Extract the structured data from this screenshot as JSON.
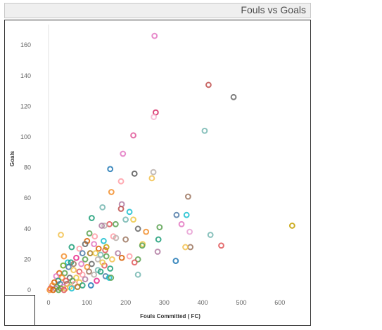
{
  "title": "Fouls vs Goals",
  "chart_data": {
    "type": "scatter",
    "title": "Fouls vs Goals",
    "xlabel": "Fouls Committed ( FC)",
    "ylabel": "Goals",
    "xlim": [
      0,
      630
    ],
    "ylim": [
      0,
      170
    ],
    "xticks": [
      "0",
      "100",
      "200",
      "300",
      "400",
      "500",
      "600"
    ],
    "yticks": [
      "0",
      "20",
      "40",
      "60",
      "80",
      "100",
      "120",
      "140",
      "160"
    ],
    "grid": false,
    "legend": "none",
    "marker": "hollow-circle",
    "colors": [
      "#4e79a7",
      "#f28e2b",
      "#e15759",
      "#76b7b2",
      "#59a14f",
      "#edc948",
      "#b07aa1",
      "#ff9da7",
      "#9c755f",
      "#bab0ac",
      "#1b9e77",
      "#d95f02",
      "#e7298a",
      "#66a61e",
      "#a6761d",
      "#666666",
      "#17becf"
    ],
    "points": [
      {
        "x": 275,
        "y": 166,
        "color": "#e377c2"
      },
      {
        "x": 415,
        "y": 134,
        "color": "#c0504d"
      },
      {
        "x": 480,
        "y": 126,
        "color": "#666666"
      },
      {
        "x": 278,
        "y": 116,
        "color": "#d62763"
      },
      {
        "x": 273,
        "y": 113,
        "color": "#f7b6d2"
      },
      {
        "x": 405,
        "y": 104,
        "color": "#76b7b2"
      },
      {
        "x": 220,
        "y": 101,
        "color": "#e15799"
      },
      {
        "x": 193,
        "y": 89,
        "color": "#e377c2"
      },
      {
        "x": 160,
        "y": 79,
        "color": "#1f77b4"
      },
      {
        "x": 223,
        "y": 76,
        "color": "#555555"
      },
      {
        "x": 272,
        "y": 77,
        "color": "#bab0ac"
      },
      {
        "x": 268,
        "y": 73,
        "color": "#f2c14e"
      },
      {
        "x": 188,
        "y": 71,
        "color": "#ff9da7"
      },
      {
        "x": 163,
        "y": 64,
        "color": "#f28e2b"
      },
      {
        "x": 362,
        "y": 61,
        "color": "#9c755f"
      },
      {
        "x": 190,
        "y": 56,
        "color": "#b07aa1"
      },
      {
        "x": 188,
        "y": 53,
        "color": "#c0504d"
      },
      {
        "x": 140,
        "y": 54,
        "color": "#76b7b2"
      },
      {
        "x": 210,
        "y": 51,
        "color": "#17becf"
      },
      {
        "x": 332,
        "y": 49,
        "color": "#4e79a7"
      },
      {
        "x": 358,
        "y": 49,
        "color": "#17becf"
      },
      {
        "x": 112,
        "y": 47,
        "color": "#1b9e77"
      },
      {
        "x": 220,
        "y": 46,
        "color": "#edc948"
      },
      {
        "x": 200,
        "y": 46,
        "color": "#76b7b2"
      },
      {
        "x": 158,
        "y": 43,
        "color": "#e15759"
      },
      {
        "x": 174,
        "y": 43,
        "color": "#59a14f"
      },
      {
        "x": 288,
        "y": 41,
        "color": "#59a14f"
      },
      {
        "x": 345,
        "y": 43,
        "color": "#e377c2"
      },
      {
        "x": 145,
        "y": 42,
        "color": "#bab0ac"
      },
      {
        "x": 138,
        "y": 42,
        "color": "#b07aa1"
      },
      {
        "x": 232,
        "y": 40,
        "color": "#666666"
      },
      {
        "x": 253,
        "y": 38,
        "color": "#f28e2b"
      },
      {
        "x": 366,
        "y": 38,
        "color": "#e7a0d4"
      },
      {
        "x": 632,
        "y": 42,
        "color": "#c4a000"
      },
      {
        "x": 420,
        "y": 36,
        "color": "#76b7b2"
      },
      {
        "x": 32,
        "y": 36,
        "color": "#f2c14e"
      },
      {
        "x": 106,
        "y": 37,
        "color": "#59a14f"
      },
      {
        "x": 168,
        "y": 35,
        "color": "#ff9da7"
      },
      {
        "x": 175,
        "y": 34,
        "color": "#bab0ac"
      },
      {
        "x": 285,
        "y": 33,
        "color": "#1b9e77"
      },
      {
        "x": 143,
        "y": 32,
        "color": "#17becf"
      },
      {
        "x": 100,
        "y": 32,
        "color": "#d95f02"
      },
      {
        "x": 95,
        "y": 30,
        "color": "#666666"
      },
      {
        "x": 118,
        "y": 30,
        "color": "#e377c2"
      },
      {
        "x": 200,
        "y": 33,
        "color": "#9c755f"
      },
      {
        "x": 244,
        "y": 30,
        "color": "#edc948"
      },
      {
        "x": 448,
        "y": 29,
        "color": "#e15759"
      },
      {
        "x": 368,
        "y": 28,
        "color": "#9c755f"
      },
      {
        "x": 355,
        "y": 28,
        "color": "#f2c14e"
      },
      {
        "x": 243,
        "y": 29,
        "color": "#59a14f"
      },
      {
        "x": 60,
        "y": 28,
        "color": "#1b9e77"
      },
      {
        "x": 80,
        "y": 27,
        "color": "#ff9da7"
      },
      {
        "x": 130,
        "y": 27,
        "color": "#d95f02"
      },
      {
        "x": 147,
        "y": 26,
        "color": "#e15759"
      },
      {
        "x": 283,
        "y": 25,
        "color": "#b07aa1"
      },
      {
        "x": 88,
        "y": 24,
        "color": "#4e79a7"
      },
      {
        "x": 108,
        "y": 24,
        "color": "#a6761d"
      },
      {
        "x": 122,
        "y": 24,
        "color": "#edc948"
      },
      {
        "x": 135,
        "y": 23,
        "color": "#76b7b2"
      },
      {
        "x": 150,
        "y": 22,
        "color": "#59a14f"
      },
      {
        "x": 210,
        "y": 22,
        "color": "#ff9da7"
      },
      {
        "x": 40,
        "y": 22,
        "color": "#f28e2b"
      },
      {
        "x": 72,
        "y": 21,
        "color": "#e7298a"
      },
      {
        "x": 95,
        "y": 20,
        "color": "#59a14f"
      },
      {
        "x": 128,
        "y": 20,
        "color": "#bab0ac"
      },
      {
        "x": 165,
        "y": 20,
        "color": "#f2c14e"
      },
      {
        "x": 190,
        "y": 21,
        "color": "#d95f02"
      },
      {
        "x": 232,
        "y": 20,
        "color": "#59a14f"
      },
      {
        "x": 330,
        "y": 19,
        "color": "#1f77b4"
      },
      {
        "x": 223,
        "y": 18,
        "color": "#e15759"
      },
      {
        "x": 50,
        "y": 18,
        "color": "#17becf"
      },
      {
        "x": 58,
        "y": 18,
        "color": "#1b9e77"
      },
      {
        "x": 65,
        "y": 17,
        "color": "#9c755f"
      },
      {
        "x": 85,
        "y": 17,
        "color": "#e377c2"
      },
      {
        "x": 112,
        "y": 17,
        "color": "#666666"
      },
      {
        "x": 145,
        "y": 16,
        "color": "#e15759"
      },
      {
        "x": 38,
        "y": 16,
        "color": "#66a61e"
      },
      {
        "x": 52,
        "y": 15,
        "color": "#4e79a7"
      },
      {
        "x": 100,
        "y": 15,
        "color": "#f28e2b"
      },
      {
        "x": 160,
        "y": 14,
        "color": "#1b9e77"
      },
      {
        "x": 128,
        "y": 13,
        "color": "#76b7b2"
      },
      {
        "x": 65,
        "y": 13,
        "color": "#f2c14e"
      },
      {
        "x": 80,
        "y": 12,
        "color": "#e15759"
      },
      {
        "x": 105,
        "y": 12,
        "color": "#9c755f"
      },
      {
        "x": 135,
        "y": 12,
        "color": "#1b9e77"
      },
      {
        "x": 28,
        "y": 11,
        "color": "#d95f02"
      },
      {
        "x": 42,
        "y": 11,
        "color": "#59a14f"
      },
      {
        "x": 88,
        "y": 10,
        "color": "#ff9da7"
      },
      {
        "x": 118,
        "y": 10,
        "color": "#bab0ac"
      },
      {
        "x": 148,
        "y": 9,
        "color": "#4e79a7"
      },
      {
        "x": 157,
        "y": 8,
        "color": "#17becf"
      },
      {
        "x": 162,
        "y": 8,
        "color": "#59a14f"
      },
      {
        "x": 232,
        "y": 10,
        "color": "#76b7b2"
      },
      {
        "x": 20,
        "y": 9,
        "color": "#e377c2"
      },
      {
        "x": 35,
        "y": 8,
        "color": "#f28e2b"
      },
      {
        "x": 55,
        "y": 8,
        "color": "#666666"
      },
      {
        "x": 72,
        "y": 8,
        "color": "#edc948"
      },
      {
        "x": 95,
        "y": 7,
        "color": "#b07aa1"
      },
      {
        "x": 25,
        "y": 6,
        "color": "#1b9e77"
      },
      {
        "x": 45,
        "y": 6,
        "color": "#e15759"
      },
      {
        "x": 62,
        "y": 6,
        "color": "#59a14f"
      },
      {
        "x": 80,
        "y": 5,
        "color": "#f2c14e"
      },
      {
        "x": 15,
        "y": 5,
        "color": "#d95f02"
      },
      {
        "x": 30,
        "y": 4,
        "color": "#4e79a7"
      },
      {
        "x": 48,
        "y": 4,
        "color": "#9c755f"
      },
      {
        "x": 68,
        "y": 4,
        "color": "#ff9da7"
      },
      {
        "x": 88,
        "y": 3,
        "color": "#1b9e77"
      },
      {
        "x": 110,
        "y": 3,
        "color": "#1f77b4"
      },
      {
        "x": 10,
        "y": 3,
        "color": "#f28e2b"
      },
      {
        "x": 22,
        "y": 2,
        "color": "#59a14f"
      },
      {
        "x": 38,
        "y": 2,
        "color": "#e377c2"
      },
      {
        "x": 55,
        "y": 2,
        "color": "#edc948"
      },
      {
        "x": 5,
        "y": 1,
        "color": "#e15759"
      },
      {
        "x": 18,
        "y": 1,
        "color": "#b07aa1"
      },
      {
        "x": 32,
        "y": 1,
        "color": "#66a61e"
      },
      {
        "x": 44,
        "y": 1,
        "color": "#f2c14e"
      },
      {
        "x": 3,
        "y": 0,
        "color": "#f28e2b"
      },
      {
        "x": 12,
        "y": 0,
        "color": "#d95f02"
      },
      {
        "x": 26,
        "y": 0,
        "color": "#59a14f"
      },
      {
        "x": 40,
        "y": 0,
        "color": "#e15759"
      },
      {
        "x": 60,
        "y": 1,
        "color": "#17becf"
      },
      {
        "x": 75,
        "y": 2,
        "color": "#a6761d"
      },
      {
        "x": 125,
        "y": 6,
        "color": "#e7298a"
      },
      {
        "x": 140,
        "y": 18,
        "color": "#edc948"
      },
      {
        "x": 180,
        "y": 24,
        "color": "#b07aa1"
      },
      {
        "x": 120,
        "y": 35,
        "color": "#ff9da7"
      },
      {
        "x": 150,
        "y": 28,
        "color": "#c4a000"
      }
    ]
  }
}
